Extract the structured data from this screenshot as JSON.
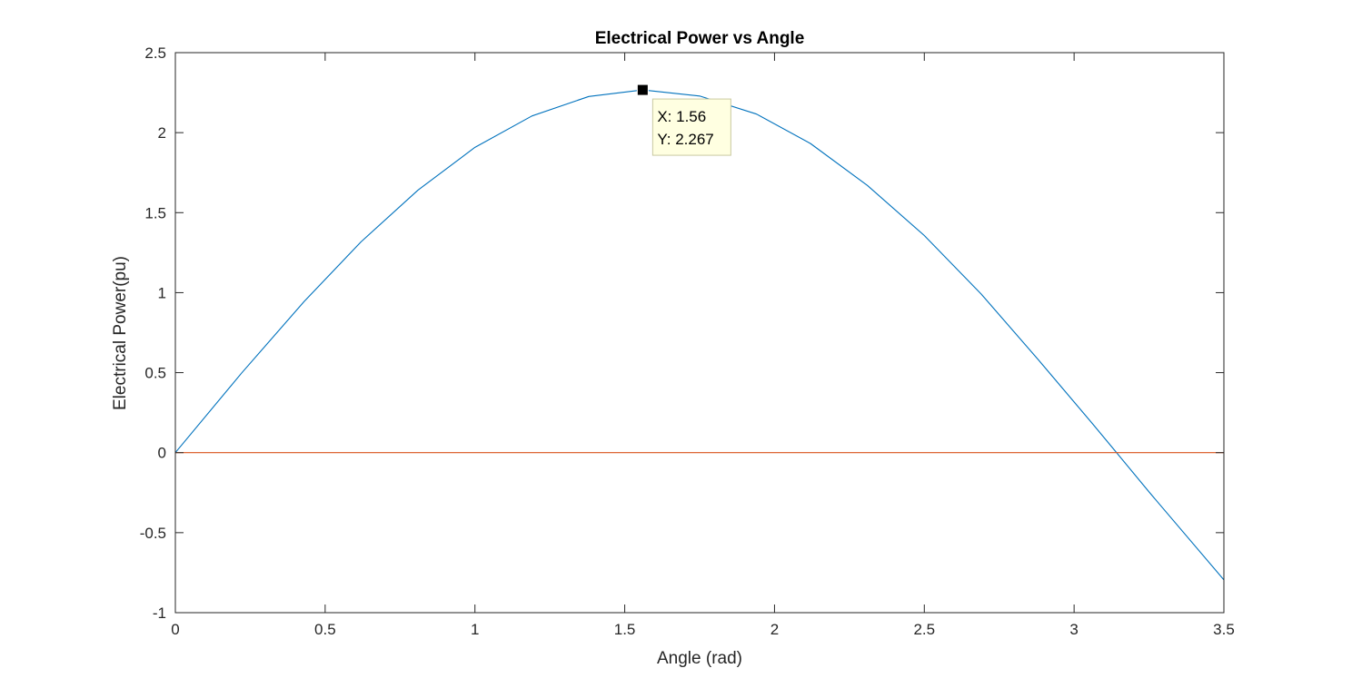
{
  "chart_data": {
    "type": "line",
    "title": "Electrical Power vs Angle",
    "xlabel": "Angle (rad)",
    "ylabel": "Electrical Power(pu)",
    "xlim": [
      0,
      3.5
    ],
    "ylim": [
      -1,
      2.5
    ],
    "xticks": [
      0,
      0.5,
      1,
      1.5,
      2,
      2.5,
      3,
      3.5
    ],
    "xtick_labels": [
      "0",
      "0.5",
      "1",
      "1.5",
      "2",
      "2.5",
      "3",
      "3.5"
    ],
    "yticks": [
      -1,
      -0.5,
      0,
      0.5,
      1,
      1.5,
      2,
      2.5
    ],
    "ytick_labels": [
      "-1",
      "-0.5",
      "0",
      "0.5",
      "1",
      "1.5",
      "2",
      "2.5"
    ],
    "grid": false,
    "series": [
      {
        "color": "#0072BD",
        "x": [
          0,
          0.22,
          0.43,
          0.62,
          0.81,
          1.0,
          1.19,
          1.38,
          1.56,
          1.75,
          1.94,
          2.12,
          2.31,
          2.5,
          2.69,
          2.88,
          3.06,
          3.14,
          3.25,
          3.5
        ],
        "y": [
          0,
          0.495,
          0.945,
          1.318,
          1.641,
          1.908,
          2.104,
          2.226,
          2.267,
          2.229,
          2.116,
          1.932,
          1.67,
          1.357,
          0.991,
          0.582,
          0.184,
          0.004,
          -0.245,
          -0.795
        ]
      },
      {
        "color": "#D95319",
        "x": [
          0,
          3.5
        ],
        "y": [
          0,
          0
        ]
      }
    ],
    "datatip": {
      "x": 1.56,
      "y": 2.267,
      "x_text": "X: 1.56",
      "y_text": "Y: 2.267"
    }
  }
}
